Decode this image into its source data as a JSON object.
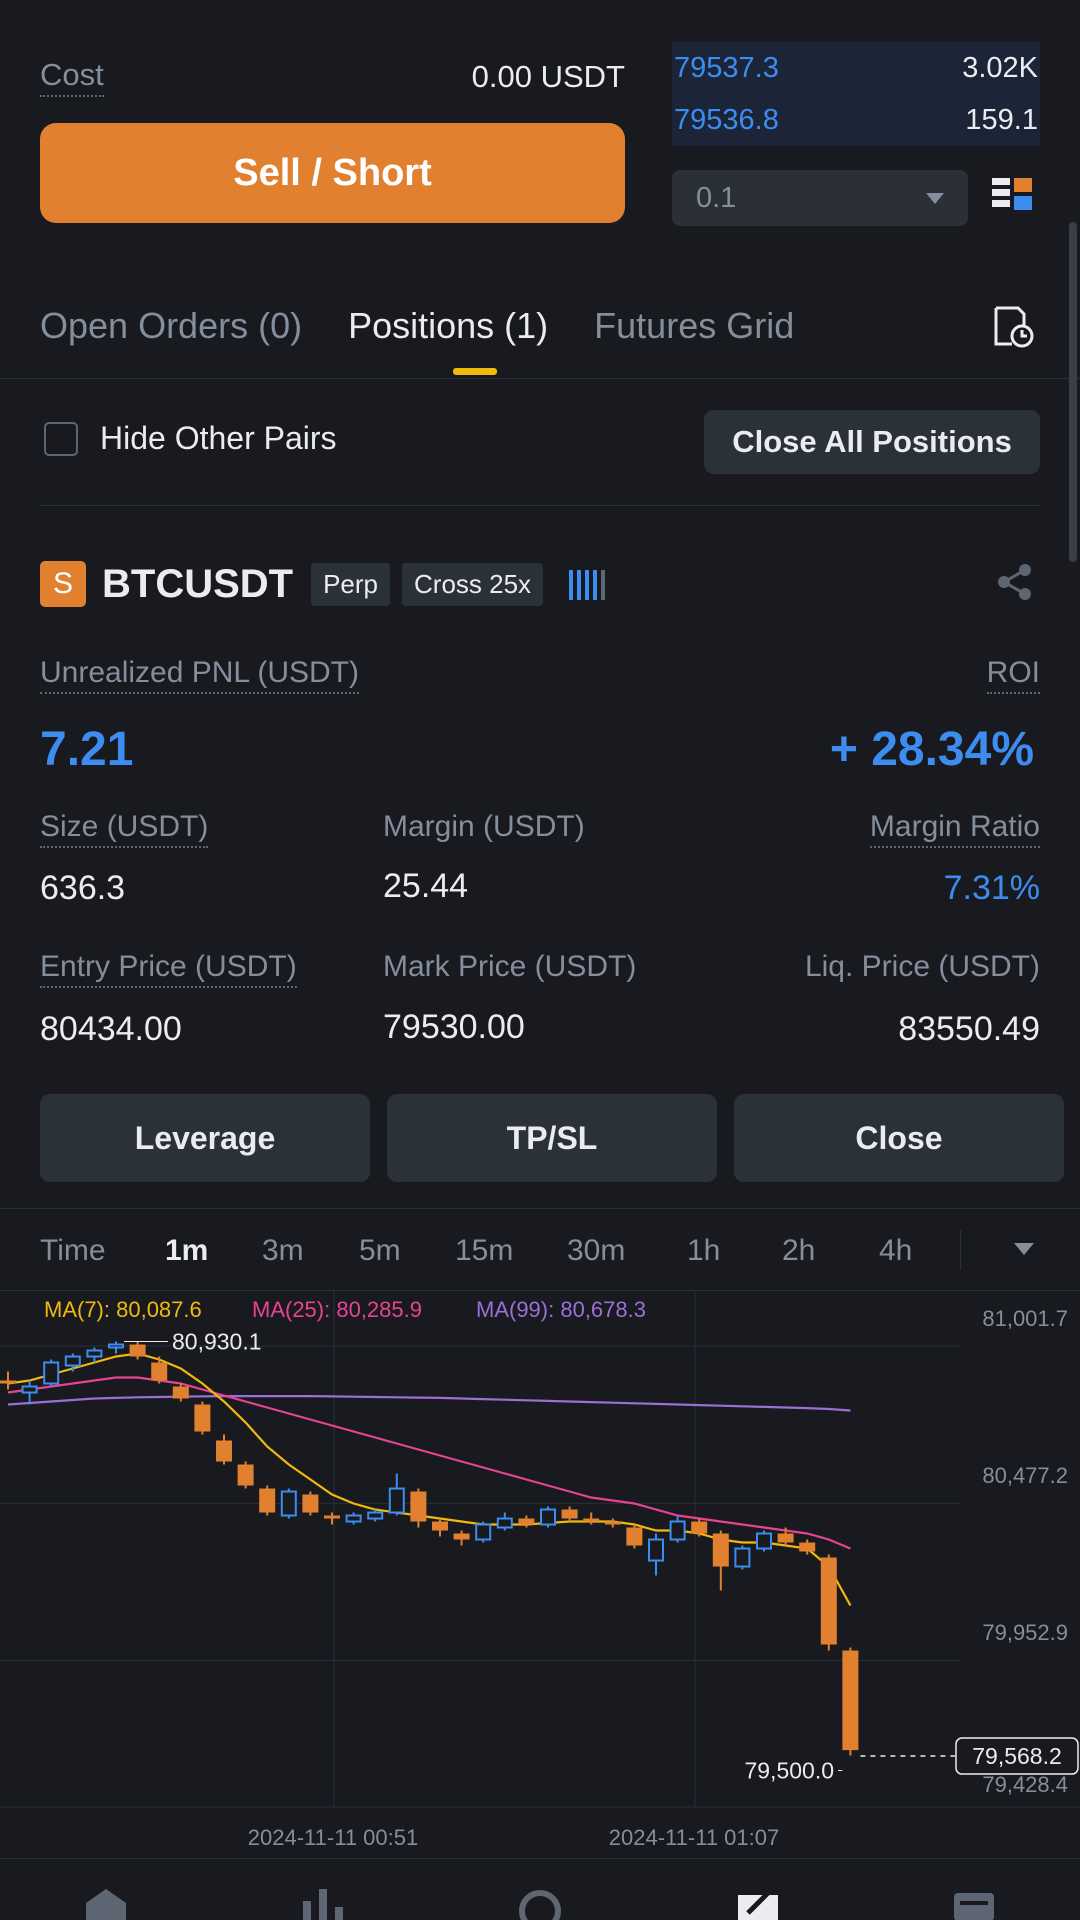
{
  "order": {
    "cost_label": "Cost",
    "cost_value": "0.00 USDT",
    "sell_label": "Sell / Short"
  },
  "orderbook": {
    "rows": [
      {
        "price": "79537.3",
        "qty": "3.02K"
      },
      {
        "price": "79536.8",
        "qty": "159.1"
      }
    ],
    "depth_value": "0.1"
  },
  "tabs": {
    "open_orders": "Open Orders (0)",
    "positions": "Positions (1)",
    "futures_grid": "Futures Grid"
  },
  "filters": {
    "hide_label": "Hide Other Pairs",
    "close_all_label": "Close All Positions"
  },
  "position": {
    "side_badge": "S",
    "symbol": "BTCUSDT",
    "type_tag": "Perp",
    "margin_tag": "Cross 25x",
    "pnl_label": "Unrealized PNL (USDT)",
    "pnl_value": "7.21",
    "roi_label": "ROI",
    "roi_value": "+ 28.34%",
    "size_label": "Size (USDT)",
    "size_value": "636.3",
    "margin_label": "Margin (USDT)",
    "margin_value": "25.44",
    "margin_ratio_label": "Margin Ratio",
    "margin_ratio_value": "7.31%",
    "entry_label": "Entry Price (USDT)",
    "entry_value": "80434.00",
    "mark_label": "Mark Price (USDT)",
    "mark_value": "79530.00",
    "liq_label": "Liq. Price (USDT)",
    "liq_value": "83550.49"
  },
  "actions": {
    "leverage": "Leverage",
    "tpsl": "TP/SL",
    "close": "Close"
  },
  "timeframes": [
    "Time",
    "1m",
    "3m",
    "5m",
    "15m",
    "30m",
    "1h",
    "2h",
    "4h"
  ],
  "active_timeframe": "1m",
  "colors": {
    "up": "#3d8cf0",
    "down": "#e1802e",
    "ma7": "#f0b90b",
    "ma25": "#e84393",
    "ma99": "#9b6fd6",
    "accent": "#f0b90b"
  },
  "chart_data": {
    "type": "candlestick",
    "ma_labels": [
      "MA(7): 80,087.6",
      "MA(25): 80,285.9",
      "MA(99): 80,678.3"
    ],
    "y_ticks": [
      "81,001.7",
      "80,477.2",
      "79,952.9",
      "79,428.4"
    ],
    "x_ticks": [
      "2024-11-11 00:51",
      "2024-11-11 01:07"
    ],
    "high_marker": "80,930.1",
    "low_marker": "79,500.0",
    "last_price": "79,568.2",
    "ylim": [
      79300,
      81050
    ],
    "candles": [
      {
        "o": 80800,
        "h": 80830,
        "l": 80770,
        "c": 80790
      },
      {
        "o": 80760,
        "h": 80800,
        "l": 80720,
        "c": 80780
      },
      {
        "o": 80790,
        "h": 80870,
        "l": 80780,
        "c": 80860
      },
      {
        "o": 80850,
        "h": 80890,
        "l": 80830,
        "c": 80880
      },
      {
        "o": 80880,
        "h": 80910,
        "l": 80860,
        "c": 80900
      },
      {
        "o": 80910,
        "h": 80930,
        "l": 80890,
        "c": 80920
      },
      {
        "o": 80920,
        "h": 80930,
        "l": 80870,
        "c": 80880
      },
      {
        "o": 80860,
        "h": 80880,
        "l": 80790,
        "c": 80800
      },
      {
        "o": 80780,
        "h": 80790,
        "l": 80730,
        "c": 80740
      },
      {
        "o": 80720,
        "h": 80730,
        "l": 80620,
        "c": 80630
      },
      {
        "o": 80600,
        "h": 80620,
        "l": 80520,
        "c": 80530
      },
      {
        "o": 80520,
        "h": 80530,
        "l": 80440,
        "c": 80450
      },
      {
        "o": 80440,
        "h": 80450,
        "l": 80350,
        "c": 80360
      },
      {
        "o": 80350,
        "h": 80440,
        "l": 80340,
        "c": 80430
      },
      {
        "o": 80420,
        "h": 80430,
        "l": 80350,
        "c": 80360
      },
      {
        "o": 80350,
        "h": 80360,
        "l": 80320,
        "c": 80340
      },
      {
        "o": 80330,
        "h": 80360,
        "l": 80320,
        "c": 80350
      },
      {
        "o": 80340,
        "h": 80370,
        "l": 80330,
        "c": 80360
      },
      {
        "o": 80360,
        "h": 80490,
        "l": 80350,
        "c": 80440
      },
      {
        "o": 80430,
        "h": 80440,
        "l": 80310,
        "c": 80330
      },
      {
        "o": 80330,
        "h": 80340,
        "l": 80280,
        "c": 80300
      },
      {
        "o": 80290,
        "h": 80300,
        "l": 80250,
        "c": 80270
      },
      {
        "o": 80270,
        "h": 80330,
        "l": 80260,
        "c": 80320
      },
      {
        "o": 80310,
        "h": 80360,
        "l": 80300,
        "c": 80340
      },
      {
        "o": 80340,
        "h": 80350,
        "l": 80310,
        "c": 80320
      },
      {
        "o": 80320,
        "h": 80380,
        "l": 80310,
        "c": 80370
      },
      {
        "o": 80370,
        "h": 80380,
        "l": 80330,
        "c": 80340
      },
      {
        "o": 80340,
        "h": 80360,
        "l": 80320,
        "c": 80330
      },
      {
        "o": 80330,
        "h": 80340,
        "l": 80310,
        "c": 80320
      },
      {
        "o": 80310,
        "h": 80320,
        "l": 80240,
        "c": 80250
      },
      {
        "o": 80200,
        "h": 80290,
        "l": 80150,
        "c": 80270
      },
      {
        "o": 80270,
        "h": 80350,
        "l": 80260,
        "c": 80330
      },
      {
        "o": 80330,
        "h": 80340,
        "l": 80280,
        "c": 80290
      },
      {
        "o": 80290,
        "h": 80300,
        "l": 80100,
        "c": 80180
      },
      {
        "o": 80180,
        "h": 80250,
        "l": 80170,
        "c": 80240
      },
      {
        "o": 80240,
        "h": 80300,
        "l": 80230,
        "c": 80290
      },
      {
        "o": 80290,
        "h": 80310,
        "l": 80250,
        "c": 80260
      },
      {
        "o": 80260,
        "h": 80270,
        "l": 80220,
        "c": 80230
      },
      {
        "o": 80210,
        "h": 80220,
        "l": 79900,
        "c": 79920
      },
      {
        "o": 79900,
        "h": 79910,
        "l": 79550,
        "c": 79568
      }
    ],
    "ma7": [
      80790,
      80800,
      80820,
      80840,
      80860,
      80880,
      80890,
      80870,
      80840,
      80790,
      80730,
      80660,
      80580,
      80520,
      80470,
      80420,
      80390,
      80370,
      80360,
      80350,
      80340,
      80330,
      80320,
      80320,
      80320,
      80325,
      80330,
      80330,
      80330,
      80320,
      80300,
      80300,
      80290,
      80270,
      80260,
      80260,
      80250,
      80240,
      80180,
      80050
    ],
    "ma25": [
      80760,
      80770,
      80780,
      80790,
      80800,
      80810,
      80810,
      80800,
      80790,
      80770,
      80750,
      80730,
      80710,
      80690,
      80670,
      80650,
      80630,
      80610,
      80590,
      80570,
      80550,
      80530,
      80510,
      80490,
      80470,
      80450,
      80430,
      80410,
      80400,
      80390,
      80370,
      80350,
      80340,
      80330,
      80320,
      80310,
      80300,
      80290,
      80270,
      80240
    ],
    "ma99": [
      80720,
      80725,
      80730,
      80735,
      80740,
      80742,
      80744,
      80745,
      80746,
      80747,
      80748,
      80748,
      80748,
      80748,
      80748,
      80747,
      80746,
      80745,
      80744,
      80743,
      80742,
      80740,
      80738,
      80736,
      80734,
      80732,
      80730,
      80728,
      80726,
      80724,
      80722,
      80720,
      80718,
      80716,
      80714,
      80712,
      80710,
      80708,
      80705,
      80700
    ]
  }
}
